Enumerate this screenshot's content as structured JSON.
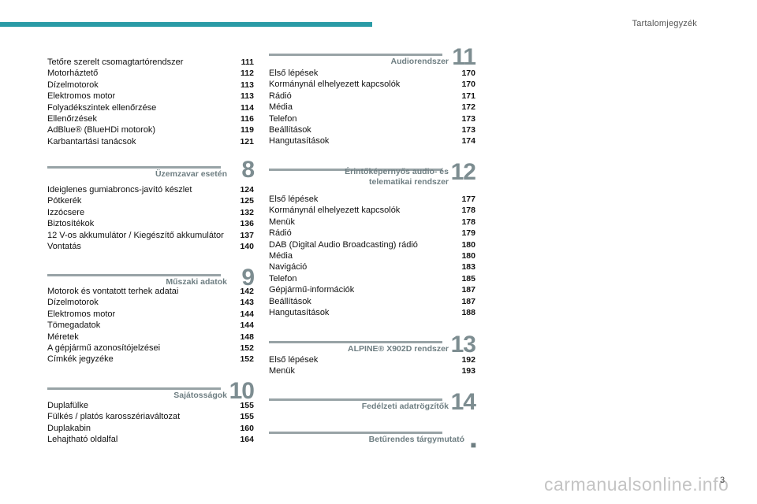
{
  "header": {
    "title": "Tartalomjegyzék"
  },
  "left_top": [
    {
      "label": "Tetőre szerelt csomagtartórendszer",
      "page": "111"
    },
    {
      "label": "Motorháztető",
      "page": "112"
    },
    {
      "label": "Dízelmotorok",
      "page": "113"
    },
    {
      "label": "Elektromos motor",
      "page": "113"
    },
    {
      "label": "Folyadékszintek ellenőrzése",
      "page": "114"
    },
    {
      "label": "Ellenőrzések",
      "page": "116"
    },
    {
      "label": "AdBlue® (BlueHDi motorok)",
      "page": "119"
    },
    {
      "label": "Karbantartási tanácsok",
      "page": "121"
    }
  ],
  "sections": {
    "s8": {
      "title": "Üzemzavar esetén",
      "num": "8",
      "items": [
        {
          "label": "Ideiglenes gumiabroncs-javító készlet",
          "page": "124"
        },
        {
          "label": "Pótkerék",
          "page": "125"
        },
        {
          "label": "Izzócsere",
          "page": "132"
        },
        {
          "label": "Biztosítékok",
          "page": "136"
        },
        {
          "label": "12 V-os akkumulátor / Kiegészítő akkumulátor",
          "page": "137"
        },
        {
          "label": "Vontatás",
          "page": "140"
        }
      ]
    },
    "s9": {
      "title": "Műszaki adatok",
      "num": "9",
      "items": [
        {
          "label": "Motorok és vontatott terhek adatai",
          "page": "142"
        },
        {
          "label": "Dízelmotorok",
          "page": "143"
        },
        {
          "label": "Elektromos motor",
          "page": "144"
        },
        {
          "label": "Tömegadatok",
          "page": "144"
        },
        {
          "label": "Méretek",
          "page": "148"
        },
        {
          "label": "A gépjármű azonosítójelzései",
          "page": "152"
        },
        {
          "label": "Címkék jegyzéke",
          "page": "152"
        }
      ]
    },
    "s10": {
      "title": "Sajátosságok",
      "num": "10",
      "items": [
        {
          "label": "Duplafülke",
          "page": "155"
        },
        {
          "label": "Fülkés / platós karosszériaváltozat",
          "page": "155"
        },
        {
          "label": "Duplakabin",
          "page": "160"
        },
        {
          "label": "Lehajtható oldalfal",
          "page": "164"
        }
      ]
    },
    "s11": {
      "title": "Audiorendszer",
      "num": "11",
      "items": [
        {
          "label": "Első lépések",
          "page": "170"
        },
        {
          "label": "Kormánynál elhelyezett kapcsolók",
          "page": "170"
        },
        {
          "label": "Rádió",
          "page": "171"
        },
        {
          "label": "Média",
          "page": "172"
        },
        {
          "label": "Telefon",
          "page": "173"
        },
        {
          "label": "Beállítások",
          "page": "173"
        },
        {
          "label": "Hangutasítások",
          "page": "174"
        }
      ]
    },
    "s12": {
      "title": "Érintőképernyős audio- és telematikai rendszer",
      "num": "12",
      "items": [
        {
          "label": "Első lépések",
          "page": "177"
        },
        {
          "label": "Kormánynál elhelyezett kapcsolók",
          "page": "178"
        },
        {
          "label": "Menük",
          "page": "178"
        },
        {
          "label": "Rádió",
          "page": "179"
        },
        {
          "label": "DAB (Digital Audio Broadcasting) rádió",
          "page": "180"
        },
        {
          "label": "Média",
          "page": "180"
        },
        {
          "label": "Navigáció",
          "page": "183"
        },
        {
          "label": "Telefon",
          "page": "185"
        },
        {
          "label": "Gépjármű-információk",
          "page": "187"
        },
        {
          "label": "Beállítások",
          "page": "187"
        },
        {
          "label": "Hangutasítások",
          "page": "188"
        }
      ]
    },
    "s13": {
      "title": "ALPINE® X902D rendszer",
      "num": "13",
      "items": [
        {
          "label": "Első lépések",
          "page": "192"
        },
        {
          "label": "Menük",
          "page": "193"
        }
      ]
    },
    "s14": {
      "title": "Fedélzeti adatrögzítők",
      "num": "14",
      "items": []
    },
    "index": {
      "title": "Betűrendes tárgymutató",
      "num": "■",
      "items": []
    }
  },
  "footer": {
    "page": "3",
    "watermark": "carmanualsonline.info"
  }
}
